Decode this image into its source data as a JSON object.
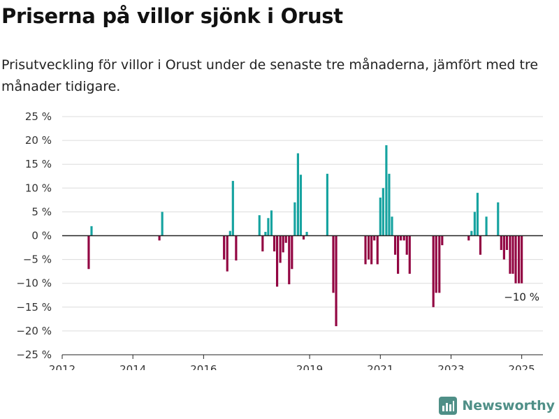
{
  "header": {
    "title": "Priserna på villor sjönk i Orust",
    "subtitle": "Prisutveckling för villor i Orust under de senaste tre månaderna, jämfört med tre månader tidigare."
  },
  "brand": {
    "name": "Newsworthy",
    "icon": "newsworthy-logo-icon",
    "color": "#4f8f87"
  },
  "chart_data": {
    "type": "bar",
    "title": "",
    "xlabel": "",
    "ylabel": "",
    "ylim": [
      -25,
      25
    ],
    "xlim": [
      2012,
      2025.6
    ],
    "y_ticks": [
      25,
      20,
      15,
      10,
      5,
      0,
      -5,
      -10,
      -15,
      -20,
      -25
    ],
    "y_tick_labels": [
      "25 %",
      "20 %",
      "15 %",
      "10 %",
      "5 %",
      "0 %",
      "−5 %",
      "−10 %",
      "−15 %",
      "−20 %",
      "−25 %"
    ],
    "x_ticks": [
      2012,
      2014,
      2016,
      2019,
      2021,
      2023,
      2025
    ],
    "x_tick_labels": [
      "2012",
      "2014",
      "2016",
      "2019",
      "2021",
      "2023",
      "2025"
    ],
    "grid": true,
    "colors": {
      "positive": "#16a3a0",
      "negative": "#920542"
    },
    "annotation": {
      "text": "−10 %",
      "x": 2025.0,
      "y": -10
    },
    "x": [
      2012.75,
      2012.83,
      2014.75,
      2014.83,
      2016.58,
      2016.67,
      2016.75,
      2016.83,
      2016.92,
      2017.58,
      2017.67,
      2017.75,
      2017.83,
      2017.92,
      2018.0,
      2018.08,
      2018.17,
      2018.25,
      2018.33,
      2018.42,
      2018.5,
      2018.58,
      2018.67,
      2018.75,
      2018.83,
      2018.92,
      2019.5,
      2019.67,
      2019.75,
      2020.58,
      2020.67,
      2020.75,
      2020.83,
      2020.92,
      2021.0,
      2021.08,
      2021.17,
      2021.25,
      2021.33,
      2021.42,
      2021.5,
      2021.58,
      2021.67,
      2021.75,
      2021.83,
      2022.5,
      2022.58,
      2022.67,
      2022.75,
      2023.5,
      2023.58,
      2023.67,
      2023.75,
      2023.83,
      2024.0,
      2024.33,
      2024.42,
      2024.5,
      2024.58,
      2024.67,
      2024.75,
      2024.83,
      2024.92,
      2025.0
    ],
    "values": [
      -7,
      2,
      -1,
      5,
      -5,
      -7.5,
      1,
      11.5,
      -5.2,
      4.3,
      -3.3,
      0.8,
      3.7,
      5.3,
      -3.3,
      -10.7,
      -5.7,
      -3.5,
      -1.5,
      -10.2,
      -7,
      7,
      17.3,
      12.8,
      -0.8,
      0.8,
      13,
      -12,
      -19,
      -6,
      -5,
      -6,
      -1,
      -6,
      8,
      10,
      19,
      13,
      4,
      -4,
      -8,
      -1,
      -1,
      -4,
      -8,
      -15,
      -12,
      -12,
      -2,
      -1,
      1,
      5,
      9,
      -4,
      4,
      7,
      -3,
      -5,
      -3,
      -8,
      -8,
      -10,
      -10,
      -10
    ]
  }
}
